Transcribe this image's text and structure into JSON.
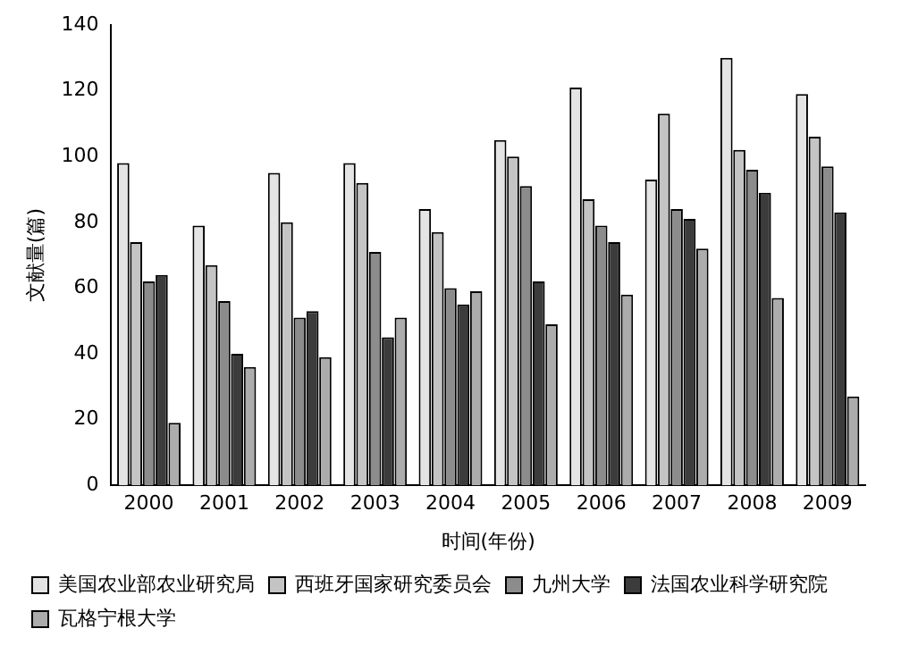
{
  "chart_data": {
    "type": "bar",
    "xlabel": "时间(年份)",
    "ylabel": "文献量(篇)",
    "categories": [
      "2000",
      "2001",
      "2002",
      "2003",
      "2004",
      "2005",
      "2006",
      "2007",
      "2008",
      "2009"
    ],
    "series": [
      {
        "name": "美国农业部农业研究局",
        "color": "#e4e4e4",
        "values": [
          98,
          79,
          95,
          98,
          84,
          105,
          121,
          93,
          130,
          119
        ]
      },
      {
        "name": "西班牙国家研究委员会",
        "color": "#c4c4c4",
        "values": [
          74,
          67,
          80,
          92,
          77,
          100,
          87,
          113,
          102,
          106
        ]
      },
      {
        "name": "九州大学",
        "color": "#8c8c8c",
        "values": [
          62,
          56,
          51,
          71,
          60,
          91,
          79,
          84,
          96,
          97
        ]
      },
      {
        "name": "法国农业科学研究院",
        "color": "#3c3c3c",
        "values": [
          64,
          40,
          53,
          45,
          55,
          62,
          74,
          81,
          89,
          83
        ]
      },
      {
        "name": "瓦格宁根大学",
        "color": "#acacac",
        "values": [
          19,
          36,
          39,
          51,
          59,
          49,
          58,
          72,
          57,
          27
        ]
      }
    ],
    "ylim": [
      0,
      140
    ],
    "yticks": [
      0,
      20,
      40,
      60,
      80,
      100,
      120,
      140
    ],
    "grid": false,
    "legend": "bottom"
  }
}
